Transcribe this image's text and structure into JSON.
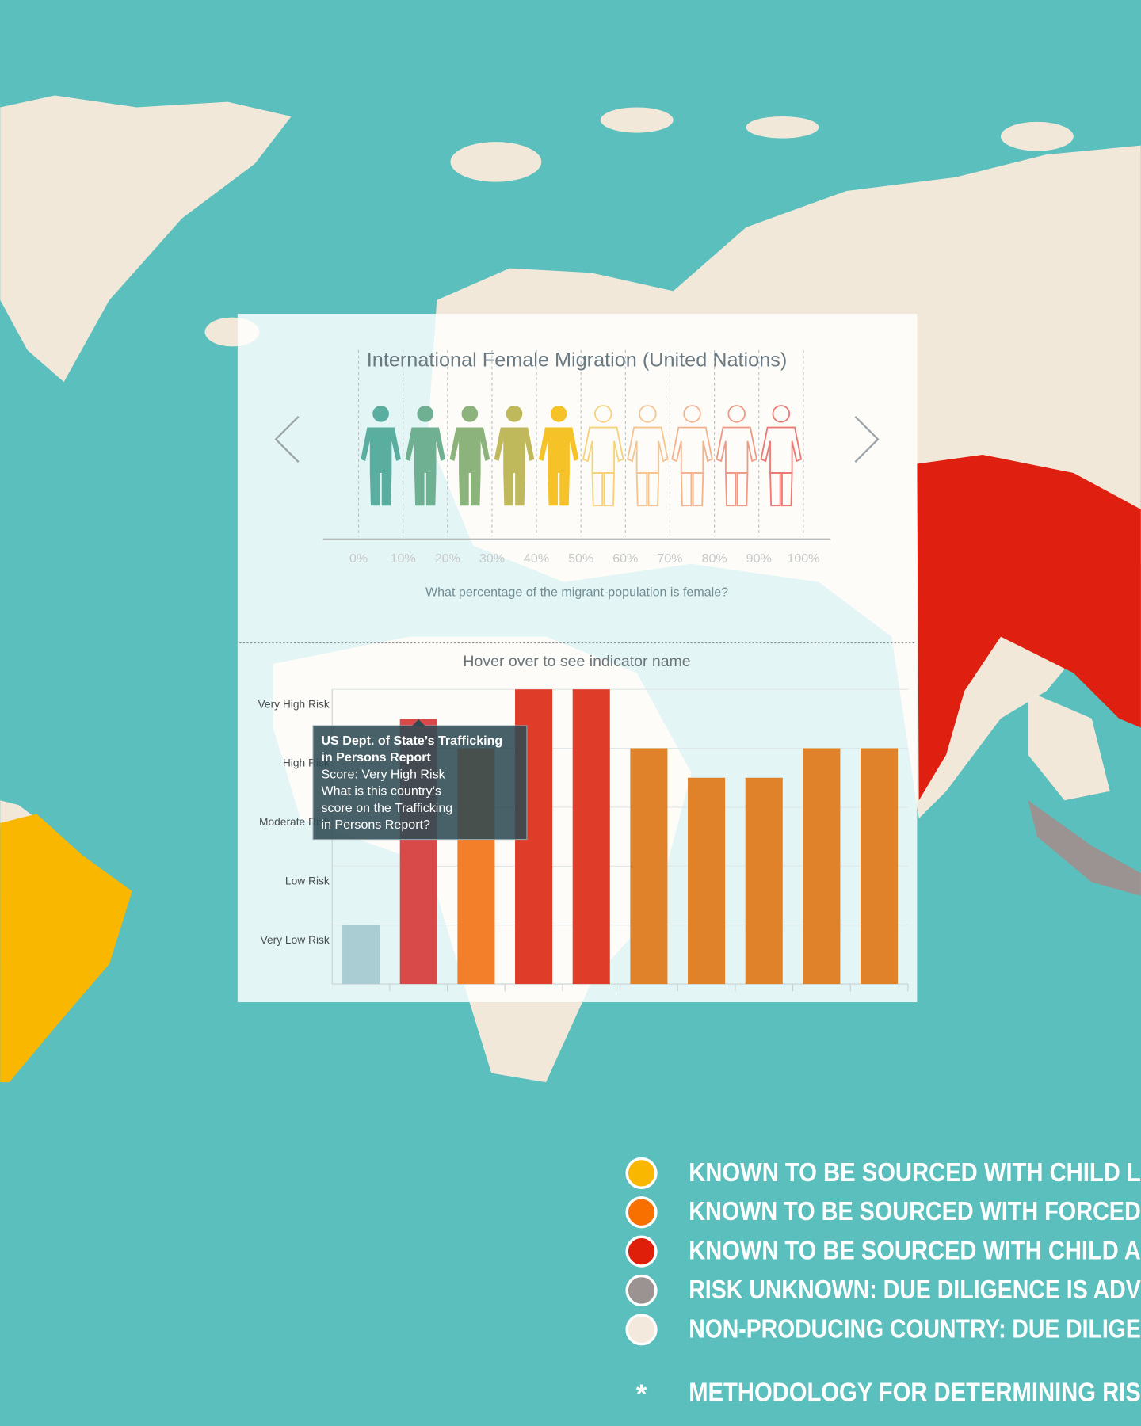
{
  "migration": {
    "title": "International Female Migration (United Nations)",
    "question": "What percentage of the migrant-population is female?",
    "female_share": 50,
    "xlim": [
      -8,
      106
    ],
    "xticks": [
      {
        "value": 0,
        "label": "0%"
      },
      {
        "value": 10,
        "label": "10%"
      },
      {
        "value": 20,
        "label": "20%"
      },
      {
        "value": 30,
        "label": "30%"
      },
      {
        "value": 40,
        "label": "40%"
      },
      {
        "value": 50,
        "label": "50%"
      },
      {
        "value": 60,
        "label": "60%"
      },
      {
        "value": 70,
        "label": "70%"
      },
      {
        "value": 80,
        "label": "80%"
      },
      {
        "value": 90,
        "label": "90%"
      },
      {
        "value": 100,
        "label": "100%"
      }
    ],
    "figure_colors": [
      "#5aaea0",
      "#6fb092",
      "#8db37c",
      "#c0b95c",
      "#f5c327",
      "#f6d27a",
      "#f5c490",
      "#f3b38e",
      "#ef9a84",
      "#ec7a74"
    ]
  },
  "chart_data": {
    "type": "bar",
    "title": "Hover over to see indicator name",
    "categories": [
      null,
      null,
      null,
      null,
      null,
      null,
      null,
      null,
      null,
      null
    ],
    "values": [
      1,
      4.5,
      4,
      5,
      5,
      4,
      3.5,
      3.5,
      4,
      4
    ],
    "colors": [
      "#a9cdd2",
      "#d84a4a",
      "#f47f2a",
      "#e03c2a",
      "#e03c2a",
      "#e0822a",
      "#e0822a",
      "#e0822a",
      "#e0822a",
      "#e0822a"
    ],
    "ylim": [
      0,
      5
    ],
    "yticks": [
      {
        "value": 1,
        "label": "Very Low Risk"
      },
      {
        "value": 2,
        "label": "Low Risk"
      },
      {
        "value": 3,
        "label": "Moderate Risk"
      },
      {
        "value": 4,
        "label": "High Risk"
      },
      {
        "value": 5,
        "label": "Very High Risk"
      }
    ],
    "grid": true
  },
  "tooltip": {
    "title": [
      "US Dept. of State’s Trafficking",
      "in Persons Report"
    ],
    "score": "Score: Very High Risk",
    "question": [
      "What is this country’s",
      "score on the Trafficking",
      "in Persons Report?"
    ]
  },
  "legend": {
    "items": [
      {
        "color": "#f9b700",
        "label": "KNOWN TO BE SOURCED WITH CHILD L"
      },
      {
        "color": "#f77000",
        "label": "KNOWN TO BE SOURCED WITH FORCED"
      },
      {
        "color": "#df1f0a",
        "label": "KNOWN TO BE SOURCED WITH CHILD A"
      },
      {
        "color": "#9b9391",
        "label": "RISK UNKNOWN: DUE DILIGENCE IS ADV"
      },
      {
        "color": "#f3e9dc",
        "label": "NON-PRODUCING COUNTRY: DUE DILIGE"
      }
    ],
    "footnote_mark": "*",
    "footnote": "METHODOLOGY FOR DETERMINING RIS"
  }
}
